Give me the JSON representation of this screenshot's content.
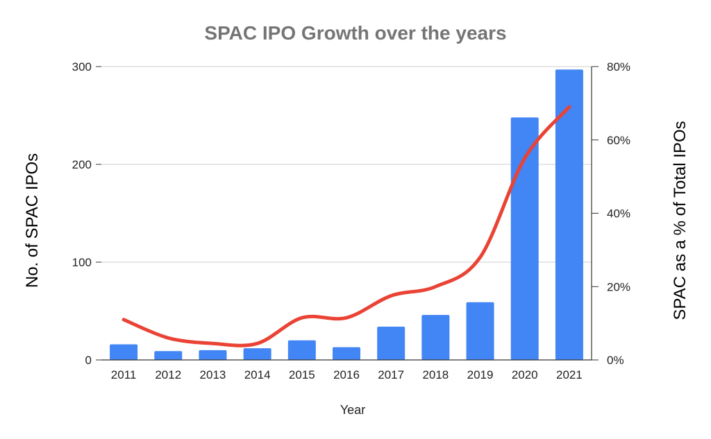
{
  "chart_data": {
    "type": "bar",
    "title": "SPAC IPO Growth over the years",
    "xlabel": "Year",
    "ylabel": "No. of SPAC IPOs",
    "y2label": "SPAC as a % of Total IPOs",
    "categories": [
      "2011",
      "2012",
      "2013",
      "2014",
      "2015",
      "2016",
      "2017",
      "2018",
      "2019",
      "2020",
      "2021"
    ],
    "ylim": [
      0,
      300
    ],
    "y_ticks": [
      0,
      100,
      200,
      300
    ],
    "y_tick_labels": [
      "0",
      "100",
      "200",
      "300"
    ],
    "y2lim": [
      0,
      80
    ],
    "y2_ticks": [
      0,
      20,
      40,
      60,
      80
    ],
    "y2_tick_labels": [
      "0%",
      "20%",
      "40%",
      "60%",
      "80%"
    ],
    "grid": true,
    "series": [
      {
        "type": "bar",
        "axis": "left",
        "color": "#4285f4",
        "values": [
          16,
          9,
          10,
          12,
          20,
          13,
          34,
          46,
          59,
          248,
          297
        ]
      },
      {
        "type": "line",
        "axis": "right",
        "color": "#ea4335",
        "smooth": true,
        "values": [
          11,
          6,
          4.5,
          4.5,
          11.5,
          11.5,
          17.5,
          20,
          28,
          55,
          69
        ]
      }
    ]
  }
}
